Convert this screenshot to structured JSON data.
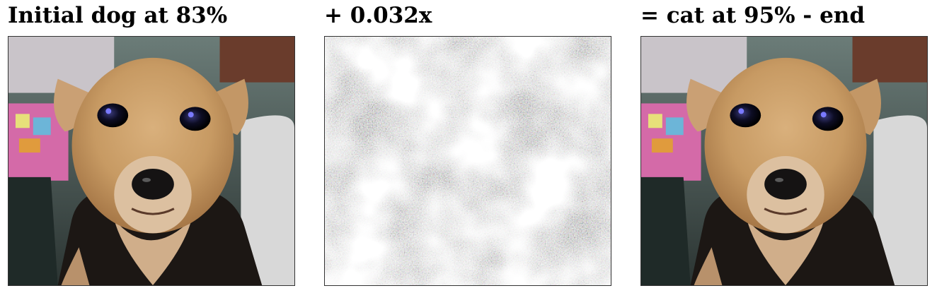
{
  "panels": [
    {
      "title": "Initial dog at 83%",
      "image": "dog-photo"
    },
    {
      "title": "+ 0.032x",
      "image": "adversarial-noise"
    },
    {
      "title": "= cat at 95% - end",
      "image": "perturbed-dog-photo"
    }
  ]
}
